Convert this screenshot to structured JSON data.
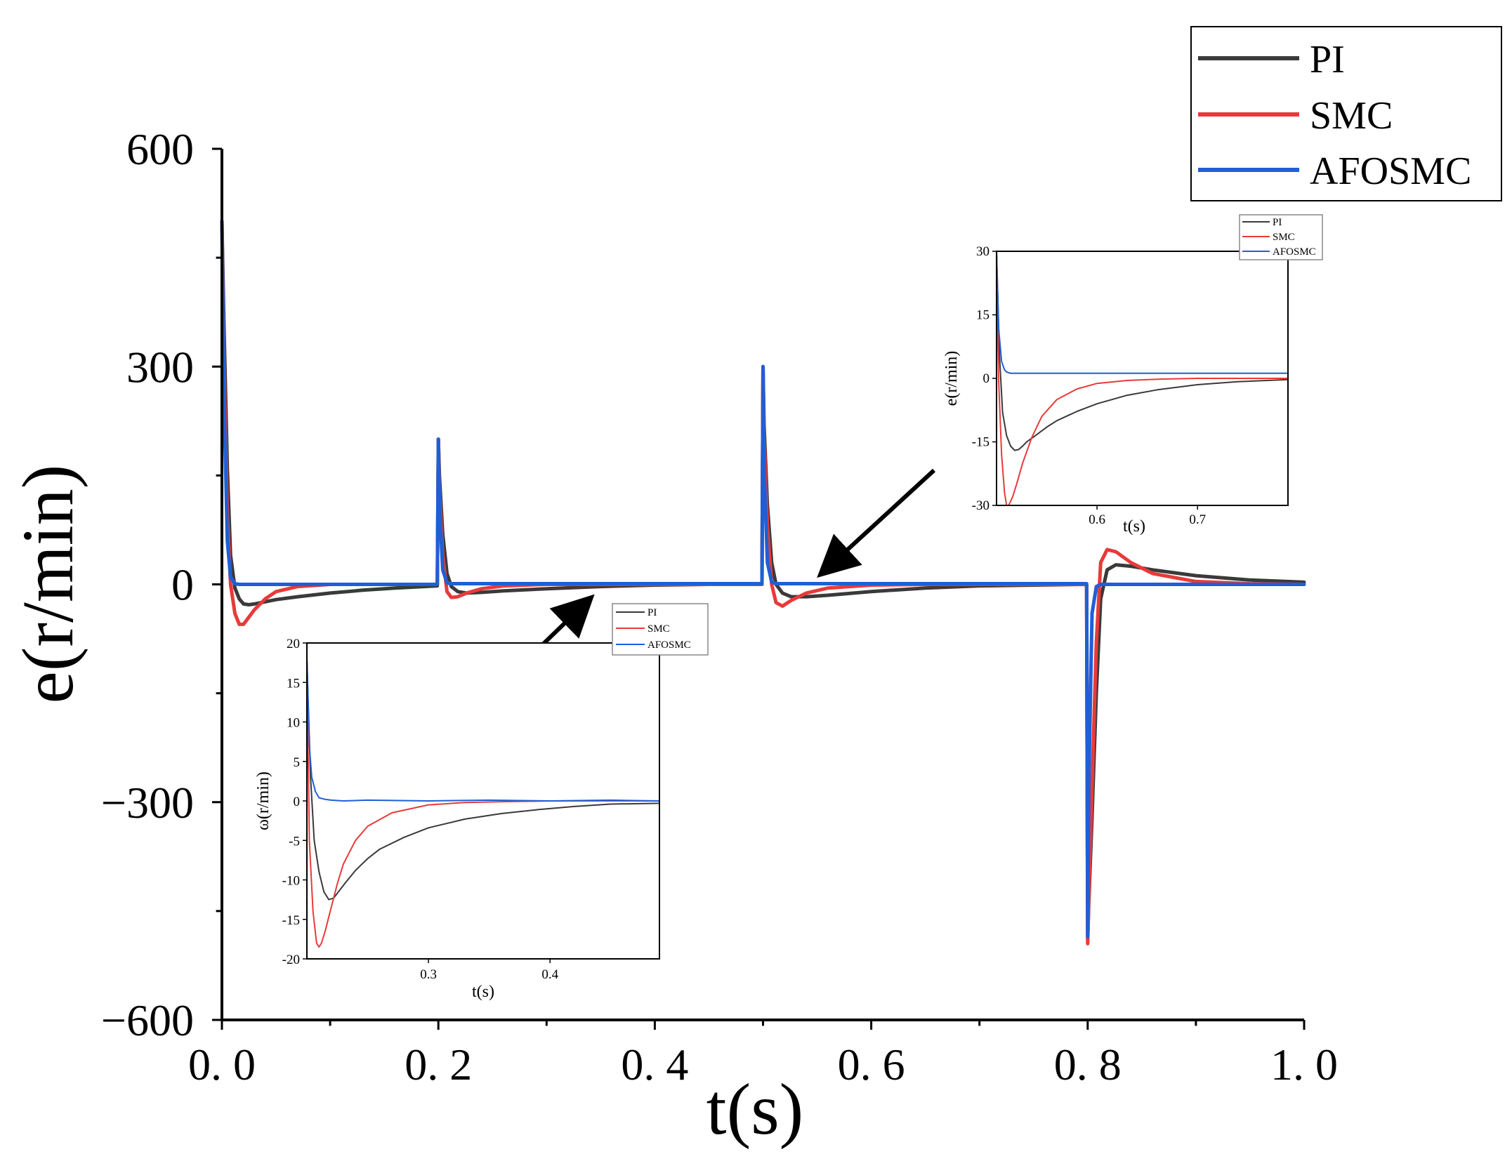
{
  "chart_data": [
    {
      "type": "line",
      "role": "main",
      "xlabel": "t(s)",
      "ylabel": "e(r/min)",
      "xlim": [
        0.0,
        1.0
      ],
      "ylim": [
        -600,
        600
      ],
      "xticks": [
        0.0,
        0.2,
        0.4,
        0.6,
        0.8,
        1.0
      ],
      "xtick_labels": [
        "0. 0",
        "0. 2",
        "0. 4",
        "0. 6",
        "0. 8",
        "1. 0"
      ],
      "yticks": [
        600,
        300,
        0,
        -300,
        -600
      ],
      "ytick_labels": [
        "600",
        "300",
        "0",
        "−300",
        "−600"
      ],
      "legend": {
        "position": "top-right",
        "entries": [
          "PI",
          "SMC",
          "AFOSMC"
        ]
      },
      "series": [
        {
          "name": "PI",
          "color": "#3a3a3a",
          "x": [
            0.0,
            0.002,
            0.005,
            0.008,
            0.012,
            0.016,
            0.02,
            0.025,
            0.03,
            0.04,
            0.05,
            0.07,
            0.1,
            0.13,
            0.16,
            0.199,
            0.2,
            0.201,
            0.204,
            0.208,
            0.212,
            0.218,
            0.226,
            0.24,
            0.26,
            0.3,
            0.35,
            0.4,
            0.45,
            0.499,
            0.5,
            0.501,
            0.504,
            0.508,
            0.512,
            0.518,
            0.526,
            0.54,
            0.56,
            0.6,
            0.65,
            0.7,
            0.75,
            0.799,
            0.8,
            0.801,
            0.804,
            0.808,
            0.812,
            0.818,
            0.826,
            0.84,
            0.86,
            0.9,
            0.95,
            1.0
          ],
          "y": [
            500,
            350,
            160,
            40,
            -5,
            -20,
            -27,
            -28,
            -27,
            -24,
            -21,
            -17,
            -12,
            -8,
            -5,
            -2,
            200,
            150,
            70,
            15,
            -3,
            -10,
            -12,
            -11,
            -9,
            -6,
            -3,
            -1,
            0,
            0,
            300,
            220,
            110,
            30,
            0,
            -12,
            -17,
            -17,
            -15,
            -10,
            -5,
            -2,
            -1,
            0,
            -490,
            -440,
            -320,
            -150,
            -20,
            20,
            27,
            25,
            20,
            12,
            6,
            3
          ]
        },
        {
          "name": "SMC",
          "color": "#e83a3a",
          "x": [
            0.0,
            0.002,
            0.005,
            0.008,
            0.012,
            0.016,
            0.02,
            0.025,
            0.03,
            0.04,
            0.05,
            0.07,
            0.1,
            0.13,
            0.16,
            0.199,
            0.2,
            0.201,
            0.204,
            0.208,
            0.212,
            0.218,
            0.226,
            0.24,
            0.26,
            0.3,
            0.35,
            0.4,
            0.45,
            0.499,
            0.5,
            0.501,
            0.504,
            0.508,
            0.512,
            0.518,
            0.526,
            0.54,
            0.56,
            0.6,
            0.65,
            0.7,
            0.75,
            0.799,
            0.8,
            0.801,
            0.804,
            0.808,
            0.812,
            0.818,
            0.826,
            0.84,
            0.86,
            0.9,
            0.95,
            1.0
          ],
          "y": [
            500,
            300,
            100,
            0,
            -40,
            -55,
            -55,
            -45,
            -35,
            -20,
            -10,
            -3,
            0,
            0,
            0,
            0,
            200,
            130,
            40,
            -10,
            -18,
            -17,
            -12,
            -6,
            -2,
            0,
            0,
            0,
            0,
            0,
            300,
            200,
            80,
            0,
            -25,
            -30,
            -22,
            -12,
            -5,
            -1,
            0,
            0,
            0,
            0,
            -495,
            -430,
            -280,
            -80,
            30,
            48,
            45,
            30,
            15,
            4,
            1,
            0
          ]
        },
        {
          "name": "AFOSMC",
          "color": "#1f5fd6",
          "x": [
            0.0,
            0.002,
            0.005,
            0.008,
            0.012,
            0.016,
            0.02,
            0.03,
            0.1,
            0.199,
            0.2,
            0.201,
            0.204,
            0.208,
            0.212,
            0.22,
            0.3,
            0.499,
            0.5,
            0.501,
            0.504,
            0.508,
            0.512,
            0.52,
            0.6,
            0.799,
            0.8,
            0.801,
            0.804,
            0.808,
            0.812,
            0.82,
            0.9,
            1.0
          ],
          "y": [
            500,
            250,
            60,
            10,
            1,
            0,
            0,
            0,
            0,
            0,
            200,
            110,
            20,
            2,
            1,
            1,
            1,
            1,
            300,
            160,
            30,
            3,
            1,
            1,
            1,
            1,
            -485,
            -280,
            -40,
            -3,
            0,
            0,
            0,
            0
          ]
        }
      ],
      "annotations": [
        "arrow to inset (0.2 s event)",
        "arrow to inset (0.5 s event)"
      ]
    },
    {
      "type": "line",
      "role": "inset-lower-left",
      "xlabel": "t(s)",
      "ylabel": "ω(r/min)",
      "xlim": [
        0.2,
        0.49
      ],
      "ylim": [
        -20,
        20
      ],
      "xticks": [
        0.3,
        0.4
      ],
      "xtick_labels": [
        "0.3",
        "0.4"
      ],
      "yticks": [
        20,
        15,
        10,
        5,
        0,
        -5,
        -10,
        -15,
        -20
      ],
      "ytick_labels": [
        "20",
        "15",
        "10",
        "5",
        "0",
        "-5",
        "-10",
        "-15",
        "-20"
      ],
      "legend": {
        "position": "top-right (outside)",
        "entries": [
          "PI",
          "SMC",
          "AFOSMC"
        ]
      },
      "series": [
        {
          "name": "PI",
          "color": "#3a3a3a",
          "x": [
            0.2,
            0.203,
            0.206,
            0.21,
            0.214,
            0.218,
            0.222,
            0.226,
            0.232,
            0.24,
            0.25,
            0.26,
            0.28,
            0.3,
            0.33,
            0.36,
            0.39,
            0.42,
            0.45,
            0.49
          ],
          "y": [
            18,
            3,
            -5,
            -9,
            -11.5,
            -12.5,
            -12.3,
            -11.5,
            -10.3,
            -8.8,
            -7.3,
            -6.1,
            -4.6,
            -3.4,
            -2.3,
            -1.6,
            -1.1,
            -0.7,
            -0.4,
            -0.3
          ]
        },
        {
          "name": "SMC",
          "color": "#e83a3a",
          "x": [
            0.2,
            0.202,
            0.205,
            0.208,
            0.21,
            0.212,
            0.215,
            0.22,
            0.225,
            0.23,
            0.24,
            0.25,
            0.27,
            0.3,
            0.33,
            0.36,
            0.4,
            0.45,
            0.49
          ],
          "y": [
            18,
            -5,
            -14,
            -18,
            -18.5,
            -18,
            -16.5,
            -13.5,
            -10.5,
            -8,
            -5,
            -3.2,
            -1.5,
            -0.5,
            -0.2,
            -0.1,
            0,
            0,
            0
          ]
        },
        {
          "name": "AFOSMC",
          "color": "#1f5fd6",
          "x": [
            0.2,
            0.202,
            0.204,
            0.207,
            0.21,
            0.215,
            0.22,
            0.23,
            0.25,
            0.3,
            0.35,
            0.4,
            0.45,
            0.49
          ],
          "y": [
            18,
            7,
            3,
            1.2,
            0.4,
            0.2,
            0.1,
            0,
            0.1,
            0,
            0.1,
            0,
            0.1,
            0
          ]
        }
      ]
    },
    {
      "type": "line",
      "role": "inset-upper-right",
      "xlabel": "t(s)",
      "ylabel": "e(r/min)",
      "xlim": [
        0.5,
        0.79
      ],
      "ylim": [
        -30,
        30
      ],
      "xticks": [
        0.6,
        0.7
      ],
      "xtick_labels": [
        "0.6",
        "0.7"
      ],
      "yticks": [
        30,
        15,
        0,
        -15,
        -30
      ],
      "ytick_labels": [
        "30",
        "15",
        "0",
        "-15",
        "-30"
      ],
      "legend": {
        "position": "top-right (outside)",
        "entries": [
          "PI",
          "SMC",
          "AFOSMC"
        ]
      },
      "series": [
        {
          "name": "PI",
          "color": "#3a3a3a",
          "x": [
            0.5,
            0.503,
            0.506,
            0.51,
            0.514,
            0.518,
            0.522,
            0.526,
            0.53,
            0.54,
            0.55,
            0.56,
            0.58,
            0.6,
            0.63,
            0.66,
            0.7,
            0.74,
            0.79
          ],
          "y": [
            30,
            5,
            -8,
            -13.5,
            -16,
            -17,
            -16.8,
            -16,
            -15,
            -13.3,
            -11.5,
            -10,
            -7.8,
            -6,
            -4,
            -2.7,
            -1.5,
            -0.8,
            -0.3
          ]
        },
        {
          "name": "SMC",
          "color": "#e83a3a",
          "x": [
            0.5,
            0.502,
            0.505,
            0.508,
            0.51,
            0.512,
            0.516,
            0.52,
            0.526,
            0.535,
            0.545,
            0.56,
            0.58,
            0.6,
            0.63,
            0.66,
            0.7,
            0.79
          ],
          "y": [
            30,
            0,
            -18,
            -27,
            -30,
            -30,
            -28,
            -25,
            -20,
            -14,
            -9,
            -5,
            -2.5,
            -1.2,
            -0.5,
            -0.2,
            0,
            0
          ]
        },
        {
          "name": "AFOSMC",
          "color": "#1f5fd6",
          "x": [
            0.5,
            0.502,
            0.505,
            0.508,
            0.51,
            0.514,
            0.52,
            0.53,
            0.56,
            0.6,
            0.65,
            0.7,
            0.75,
            0.79
          ],
          "y": [
            30,
            12,
            4,
            2,
            1.5,
            1.2,
            1.2,
            1.2,
            1.2,
            1.2,
            1.2,
            1.2,
            1.2,
            1.2
          ]
        }
      ]
    }
  ]
}
